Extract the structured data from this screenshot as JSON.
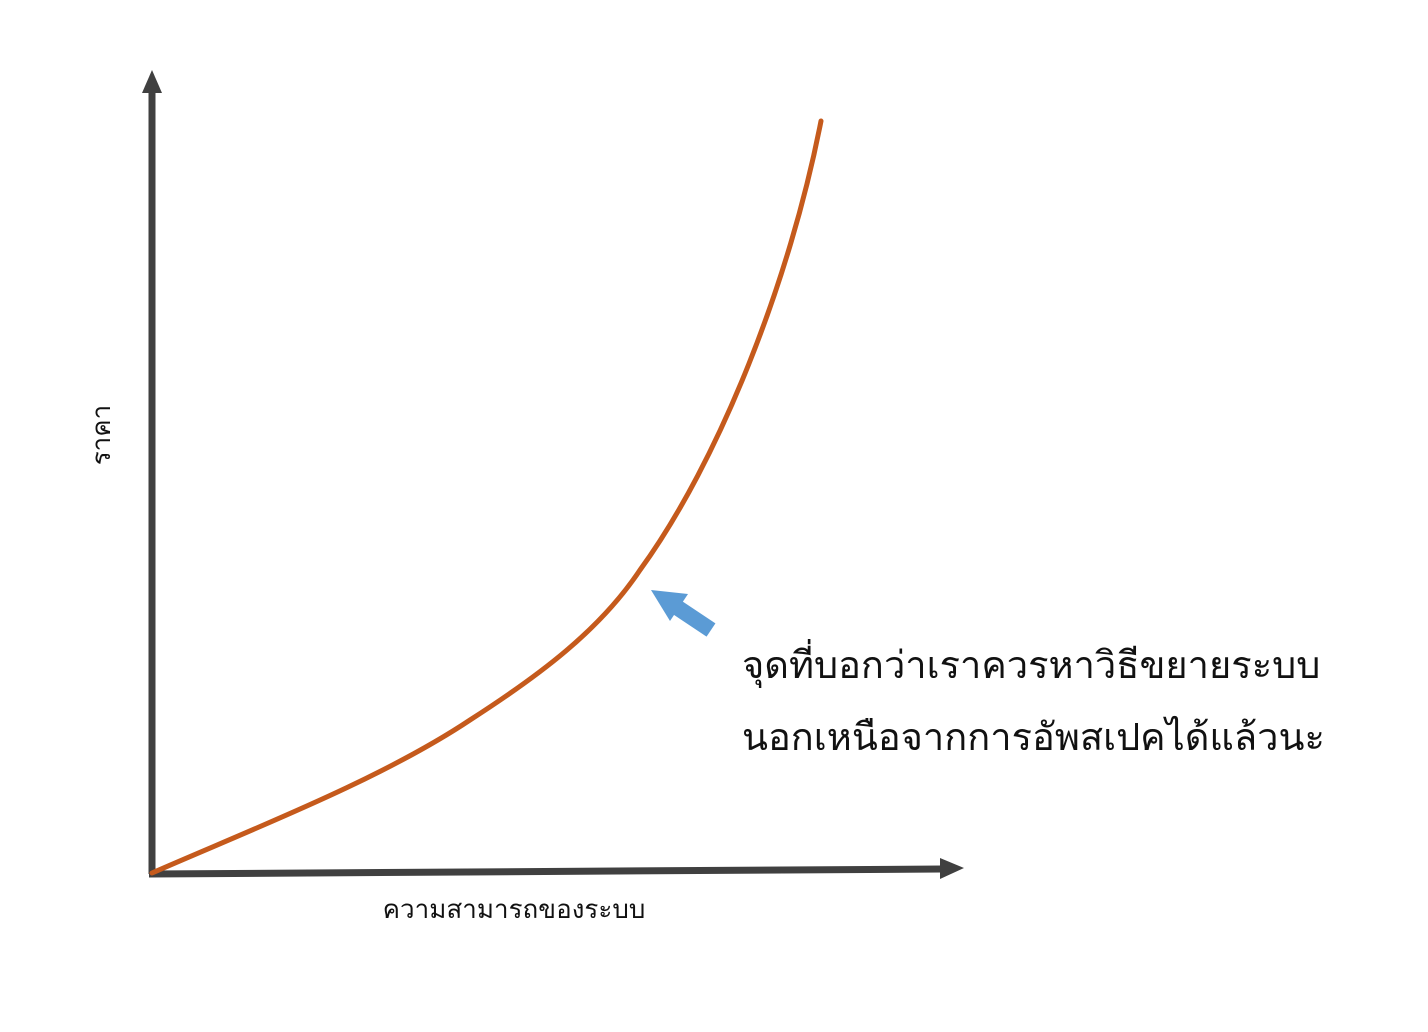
{
  "diagram": {
    "x_axis_label": "ความสามารถของระบบ",
    "y_axis_label": "ราคา",
    "annotation": {
      "line1": "จุดที่บอกว่าเราควรหาวิธีขยายระบบ",
      "line2": "นอกเหนือจากการอัพสเปคได้แล้วนะ"
    }
  },
  "colors": {
    "axis": "#404040",
    "curve": "#c55a1c",
    "arrow": "#5b9bd5",
    "text": "#111111"
  }
}
